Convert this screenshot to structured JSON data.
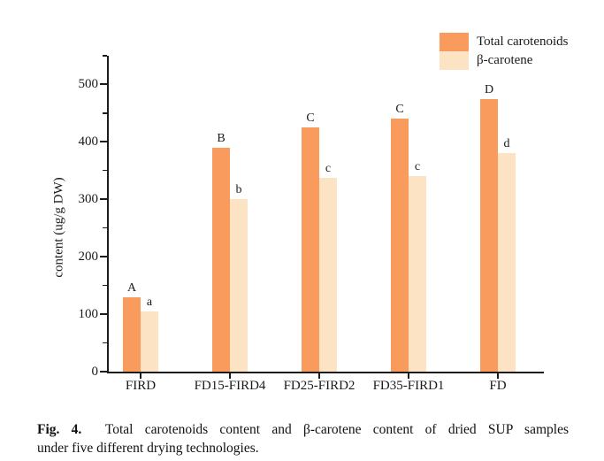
{
  "chart_data": {
    "type": "bar",
    "title": "",
    "categories": [
      "FIRD",
      "FD15-FIRD4",
      "FD25-FIRD2",
      "FD35-FIRD1",
      "FD"
    ],
    "series": [
      {
        "key": "total-carotenoids",
        "name": "Total carotenoids",
        "color": "#F89B5D",
        "values": [
          130,
          390,
          425,
          440,
          475
        ],
        "sig_letters": [
          "A",
          "B",
          "C",
          "C",
          "D"
        ]
      },
      {
        "key": "beta-carotene",
        "name": "β-carotene",
        "color": "#FBE3C3",
        "values": [
          105,
          300,
          337,
          340,
          380
        ],
        "sig_letters": [
          "a",
          "b",
          "c",
          "c",
          "d"
        ]
      }
    ],
    "xlabel": "",
    "ylabel": "content (ug/g DW)",
    "ylim": [
      0,
      550
    ],
    "yticks": [
      0,
      100,
      200,
      300,
      400,
      500
    ],
    "minor_tick_step": 50,
    "grid": false,
    "legend_position": "top-right"
  },
  "figure": {
    "caption_label": "Fig. 4.",
    "caption_line1": "Total carotenoids content and β-carotene content of dried SUP samples",
    "caption_line2": "under five different drying technologies."
  }
}
